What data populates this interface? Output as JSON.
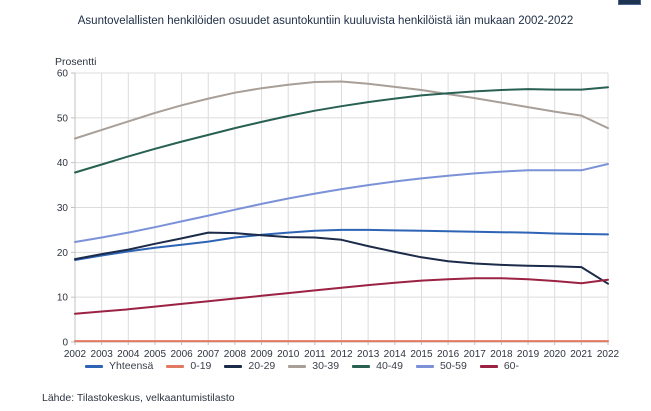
{
  "header": {
    "corner_button_color": "#1e3252"
  },
  "source": "Lähde: Tilastokeskus, velkaantumistilasto",
  "chart_data": {
    "type": "line",
    "title": "Asuntovelallisten henkilöiden osuudet asuntokuntiin kuuluvista henkilöistä iän mukaan 2002-2022",
    "ylabel": "Prosentti",
    "xlabel": "",
    "ylim": [
      0,
      60
    ],
    "ytick_step": 10,
    "grid": true,
    "legend_position": "bottom",
    "colors": {
      "grid": "#dcdcdc",
      "axis": "#c2c2c2",
      "tick_text": "#2e3440",
      "title_text": "#1d2d44"
    },
    "x": [
      2002,
      2003,
      2004,
      2005,
      2006,
      2007,
      2008,
      2009,
      2010,
      2011,
      2012,
      2013,
      2014,
      2015,
      2016,
      2017,
      2018,
      2019,
      2020,
      2021,
      2022
    ],
    "series": [
      {
        "name": "Yhteensä",
        "color": "#2e64b5",
        "values": [
          18.3,
          19.3,
          20.2,
          21.0,
          21.7,
          22.4,
          23.3,
          23.9,
          24.4,
          24.8,
          25.0,
          25.0,
          24.9,
          24.8,
          24.7,
          24.6,
          24.5,
          24.4,
          24.2,
          24.1,
          24.0
        ]
      },
      {
        "name": "0-19",
        "color": "#e27a63",
        "values": [
          0.2,
          0.2,
          0.2,
          0.2,
          0.2,
          0.2,
          0.2,
          0.2,
          0.2,
          0.2,
          0.2,
          0.2,
          0.2,
          0.2,
          0.2,
          0.2,
          0.2,
          0.2,
          0.2,
          0.2,
          0.2
        ]
      },
      {
        "name": "20-29",
        "color": "#1b2b49",
        "values": [
          18.5,
          19.6,
          20.6,
          21.9,
          23.1,
          24.4,
          24.3,
          23.8,
          23.4,
          23.3,
          22.8,
          21.4,
          20.1,
          18.9,
          18.0,
          17.5,
          17.2,
          17.0,
          16.9,
          16.7,
          13.0
        ]
      },
      {
        "name": "30-39",
        "color": "#a89f98",
        "values": [
          45.4,
          47.3,
          49.2,
          51.1,
          52.8,
          54.3,
          55.6,
          56.6,
          57.4,
          58.0,
          58.1,
          57.6,
          56.9,
          56.2,
          55.3,
          54.4,
          53.4,
          52.4,
          51.4,
          50.5,
          47.7
        ]
      },
      {
        "name": "40-49",
        "color": "#286052",
        "values": [
          37.8,
          39.6,
          41.4,
          43.1,
          44.7,
          46.2,
          47.7,
          49.1,
          50.4,
          51.6,
          52.6,
          53.5,
          54.3,
          55.0,
          55.5,
          55.9,
          56.2,
          56.4,
          56.3,
          56.3,
          56.8
        ]
      },
      {
        "name": "50-59",
        "color": "#7b92d8",
        "values": [
          22.3,
          23.3,
          24.4,
          25.6,
          26.9,
          28.2,
          29.5,
          30.8,
          32.0,
          33.1,
          34.1,
          35.0,
          35.8,
          36.5,
          37.1,
          37.6,
          38.0,
          38.3,
          38.3,
          38.3,
          39.7
        ]
      },
      {
        "name": "60-",
        "color": "#9b2242",
        "values": [
          6.3,
          6.8,
          7.3,
          7.9,
          8.5,
          9.1,
          9.7,
          10.3,
          10.9,
          11.5,
          12.1,
          12.7,
          13.2,
          13.7,
          14.0,
          14.2,
          14.2,
          14.0,
          13.6,
          13.1,
          13.9
        ]
      }
    ]
  }
}
